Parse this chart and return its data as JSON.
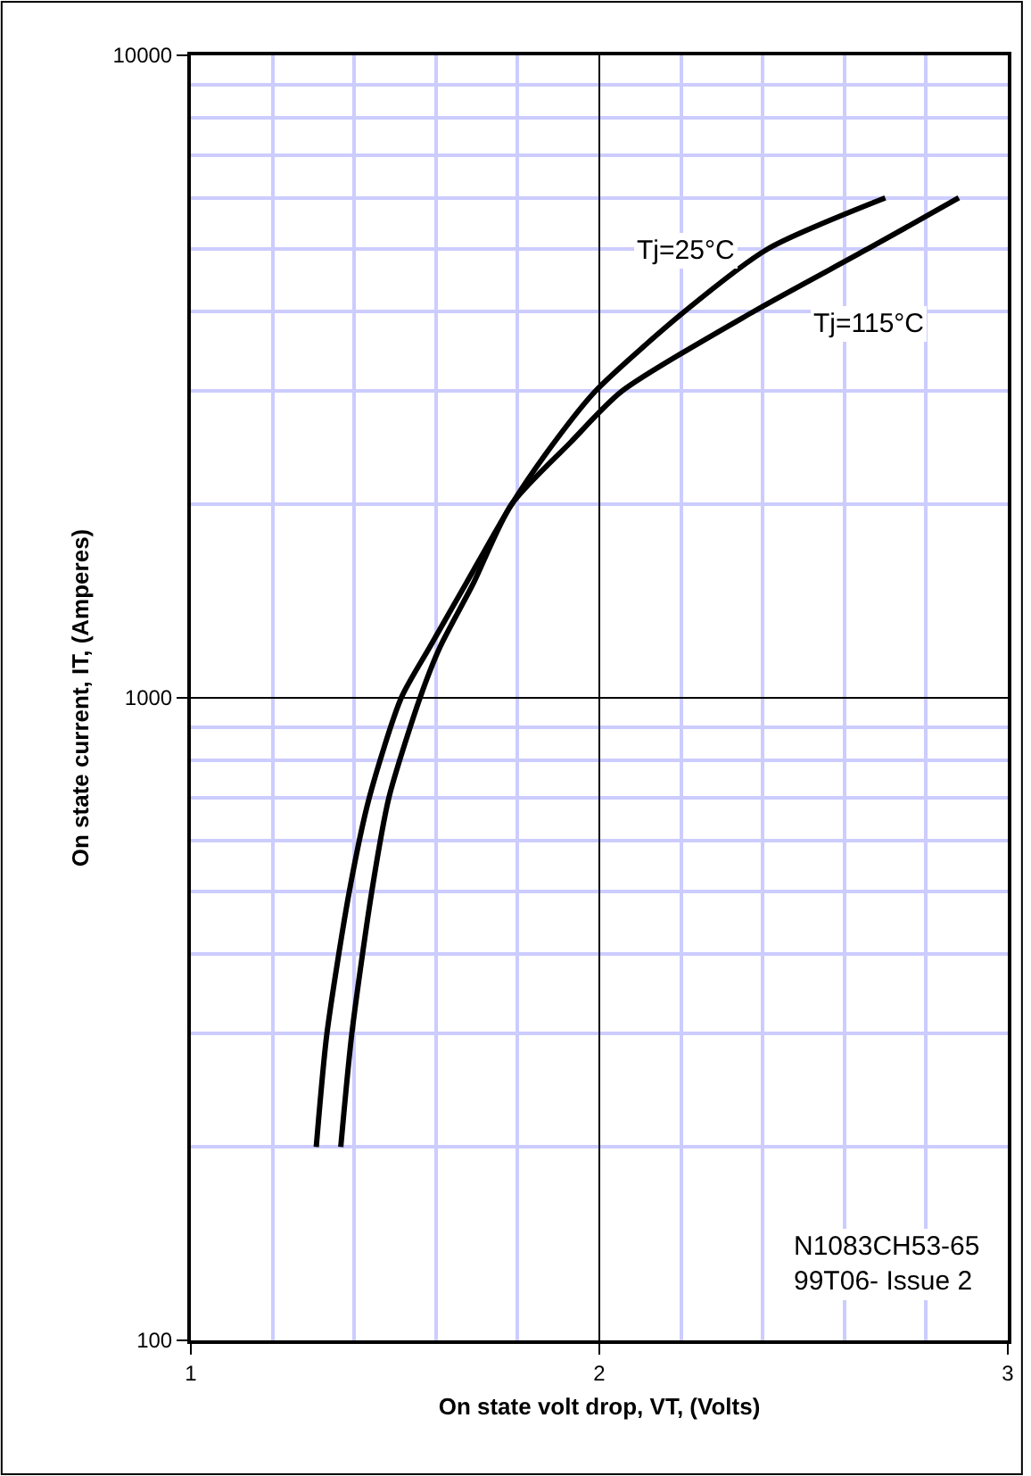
{
  "chart_data": {
    "type": "line",
    "xlabel": "On state volt drop, VT, (Volts)",
    "ylabel": "On state current, IT, (Amperes)",
    "xlim": [
      1,
      3
    ],
    "xticks": [
      1,
      {
        "value": 1.2,
        "label": null
      },
      {
        "value": 1.4,
        "label": null
      },
      {
        "value": 1.6,
        "label": null
      },
      {
        "value": 1.8,
        "label": null
      },
      2,
      {
        "value": 2.2,
        "label": null
      },
      {
        "value": 2.4,
        "label": null
      },
      {
        "value": 2.6,
        "label": null
      },
      {
        "value": 2.8,
        "label": null
      },
      3
    ],
    "ylim": [
      100,
      10000
    ],
    "yticks": [
      100,
      {
        "value": 200,
        "label": null
      },
      {
        "value": 300,
        "label": null
      },
      {
        "value": 400,
        "label": null
      },
      {
        "value": 500,
        "label": null
      },
      {
        "value": 600,
        "label": null
      },
      {
        "value": 700,
        "label": null
      },
      {
        "value": 800,
        "label": null
      },
      {
        "value": 900,
        "label": null
      },
      1000,
      {
        "value": 2000,
        "label": null
      },
      {
        "value": 3000,
        "label": null
      },
      {
        "value": 4000,
        "label": null
      },
      {
        "value": 5000,
        "label": null
      },
      {
        "value": 6000,
        "label": null
      },
      {
        "value": 7000,
        "label": null
      },
      {
        "value": 8000,
        "label": null
      },
      {
        "value": 9000,
        "label": null
      },
      10000
    ],
    "log": "y",
    "grid": true,
    "legend": false,
    "marker": "none",
    "line_style": "solid",
    "series": [
      {
        "name": "Tj=25°C",
        "color": "#000000",
        "x": [
          1.307,
          1.333,
          1.388,
          1.437,
          1.515,
          1.585,
          1.672,
          1.785,
          1.89,
          1.99,
          2.21,
          2.413,
          2.7
        ],
        "values": [
          200,
          300,
          500,
          700,
          1000,
          1200,
          1500,
          2000,
          2500,
          3000,
          4000,
          5000,
          6000
        ]
      },
      {
        "name": "Tj=115°C",
        "color": "#000000",
        "x": [
          1.367,
          1.394,
          1.443,
          1.485,
          1.561,
          1.61,
          1.69,
          1.785,
          1.93,
          2.055,
          2.38,
          2.658,
          2.88
        ],
        "values": [
          200,
          300,
          500,
          700,
          1000,
          1200,
          1500,
          2000,
          2500,
          3000,
          4000,
          5000,
          6000
        ]
      }
    ],
    "annotations": [
      "N1083CH53-65\n99T06- Issue 2"
    ]
  }
}
